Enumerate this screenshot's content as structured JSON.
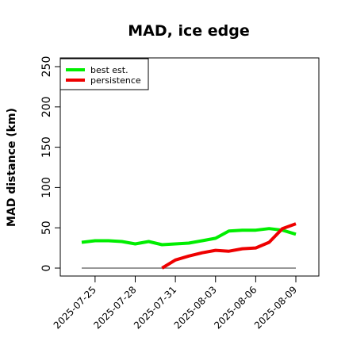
{
  "chart_data": {
    "type": "line",
    "title": "MAD, ice edge",
    "xlabel": "",
    "ylabel": "MAD distance (km)",
    "ylim": [
      0,
      250
    ],
    "yticks": [
      0,
      50,
      100,
      150,
      200,
      250
    ],
    "xlim": [
      "2025-07-23",
      "2025-08-10"
    ],
    "xticks": [
      "2025-07-25",
      "2025-07-28",
      "2025-07-31",
      "2025-08-03",
      "2025-08-06",
      "2025-08-09"
    ],
    "legend_position": "top-left",
    "grid": false,
    "series": [
      {
        "name": "best est.",
        "color": "#00ee00",
        "x": [
          "2025-07-24",
          "2025-07-25",
          "2025-07-26",
          "2025-07-27",
          "2025-07-28",
          "2025-07-29",
          "2025-07-30",
          "2025-07-31",
          "2025-08-01",
          "2025-08-02",
          "2025-08-03",
          "2025-08-04",
          "2025-08-05",
          "2025-08-06",
          "2025-08-07",
          "2025-08-08",
          "2025-08-09"
        ],
        "y": [
          32,
          34,
          34,
          33,
          30,
          33,
          29,
          30,
          31,
          34,
          37,
          46,
          47,
          47,
          49,
          47,
          42
        ]
      },
      {
        "name": "persistence",
        "color": "#ee0000",
        "x": [
          "2025-07-30",
          "2025-07-31",
          "2025-08-01",
          "2025-08-02",
          "2025-08-03",
          "2025-08-04",
          "2025-08-05",
          "2025-08-06",
          "2025-08-07",
          "2025-08-08",
          "2025-08-09"
        ],
        "y": [
          0,
          10,
          15,
          19,
          22,
          21,
          24,
          25,
          32,
          49,
          55
        ]
      }
    ],
    "reference_line": {
      "y": 0,
      "x_start": "2025-07-24",
      "x_end": "2025-08-09",
      "color": "#777777"
    }
  }
}
